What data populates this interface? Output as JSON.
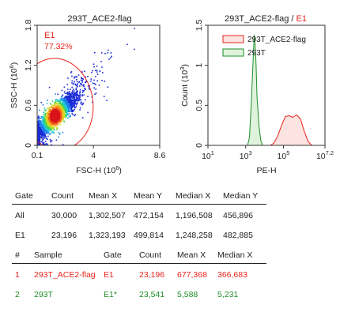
{
  "chart_data": [
    {
      "type": "scatter",
      "title": "293T_ACE2-flag",
      "xlabel": "FSC-H  (10",
      "xlabel_exp": "6",
      "xlabel_close": ")",
      "ylabel": "SSC-H  (10",
      "ylabel_exp": "6",
      "ylabel_close": ")",
      "xlim": [
        0.1,
        8.6
      ],
      "ylim": [
        0,
        1.8
      ],
      "x_ticks": [
        "0.1",
        "4",
        "8.6"
      ],
      "y_ticks": [
        "0",
        "0.6",
        "1.2",
        "1.8"
      ],
      "gate": {
        "name": "E1",
        "percent": "77.32%",
        "color": "#e8241c"
      },
      "density_peak": {
        "x": 1.3,
        "y": 0.45
      }
    },
    {
      "type": "area",
      "title_main": "293T_ACE2-flag / ",
      "title_gate": "E1",
      "xlabel": "PE-H",
      "ylabel": "Count  (10",
      "ylabel_exp": "3",
      "ylabel_close": ")",
      "x_scale": "log",
      "xlim": [
        1,
        7.2
      ],
      "ylim": [
        0,
        1.5
      ],
      "x_ticks": [
        {
          "base": "10",
          "exp": "1"
        },
        {
          "base": "10",
          "exp": "3"
        },
        {
          "base": "10",
          "exp": "5"
        },
        {
          "base": "10",
          "exp": "7.2"
        }
      ],
      "y_ticks": [
        "0",
        "0.5",
        "1",
        "1.5"
      ],
      "legend": {
        "placement": "top-right"
      },
      "series": [
        {
          "name": "293T_ACE2-flag",
          "color": "#e8241c",
          "fill": "#fde3e1",
          "x": [
            4.3,
            4.5,
            4.7,
            4.9,
            5.1,
            5.3,
            5.5,
            5.7,
            5.9,
            6.1,
            6.3,
            6.5
          ],
          "y": [
            0,
            0.03,
            0.12,
            0.25,
            0.36,
            0.37,
            0.35,
            0.38,
            0.33,
            0.18,
            0.05,
            0
          ]
        },
        {
          "name": "293T",
          "color": "#1e8e2a",
          "fill": "#dff2dc",
          "x": [
            3.1,
            3.2,
            3.3,
            3.4,
            3.45,
            3.5,
            3.55,
            3.6,
            3.7,
            3.8,
            3.9
          ],
          "y": [
            0,
            0.1,
            0.55,
            1.1,
            1.38,
            1.25,
            1.0,
            0.6,
            0.25,
            0.06,
            0
          ]
        }
      ]
    }
  ],
  "gate_table": {
    "headers": [
      "Gate",
      "Count",
      "Mean X",
      "Mean Y",
      "Median X",
      "Median Y"
    ],
    "rows": [
      [
        "All",
        "30,000",
        "1,302,507",
        "472,154",
        "1,196,508",
        "456,896"
      ],
      [
        "E1",
        "23,196",
        "1,323,193",
        "499,814",
        "1,248,258",
        "482,885"
      ]
    ]
  },
  "sample_table": {
    "headers": [
      "#",
      "Sample",
      "Gate",
      "Count",
      "Mean X",
      "Median X"
    ],
    "rows": [
      {
        "color": "#e8241c",
        "cells": [
          "1",
          "293T_ACE2-flag",
          "E1",
          "23,196",
          "677,368",
          "366,683"
        ]
      },
      {
        "color": "#1e8e2a",
        "cells": [
          "2",
          "293T",
          "E1*",
          "23,541",
          "5,588",
          "5,231"
        ]
      }
    ]
  }
}
